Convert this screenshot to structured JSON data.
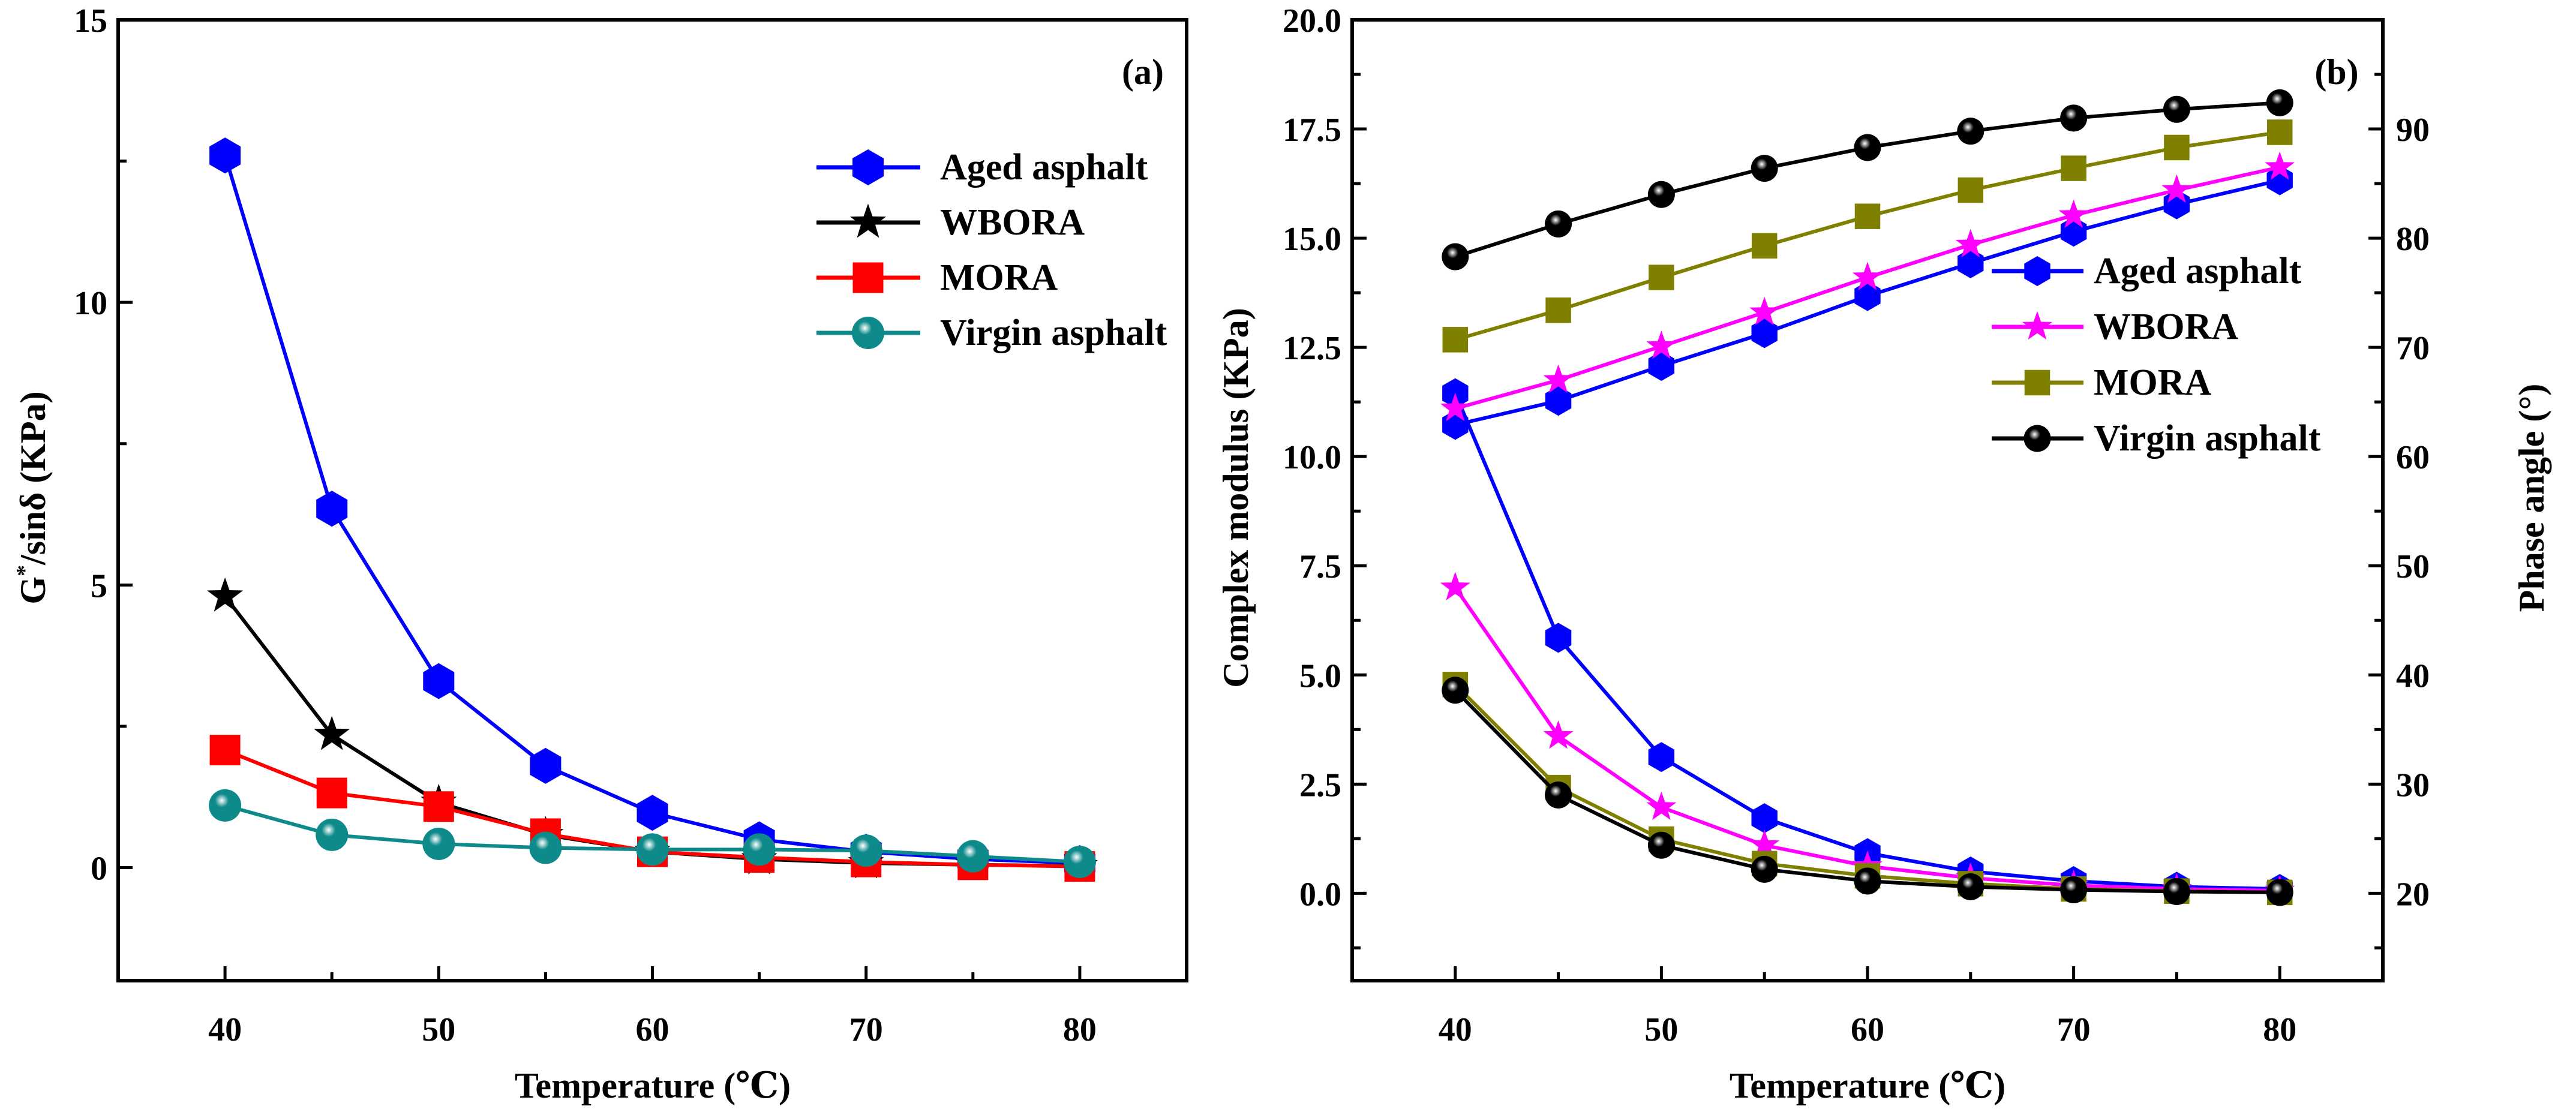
{
  "chart_data": [
    {
      "type": "line",
      "panel_label": "(a)",
      "xlabel": "Temperature (℃)",
      "ylabel": "G*/sinδ (KPa)",
      "ylabel_parts": {
        "pre": "G",
        "sup": "*",
        "post": "/sinδ (KPa)"
      },
      "xlim": [
        35,
        85
      ],
      "ylim": [
        -2,
        15
      ],
      "xticks": [
        40,
        50,
        60,
        70,
        80
      ],
      "yticks": [
        0,
        5,
        10,
        15
      ],
      "legend_position": "top-right",
      "x": [
        40,
        45,
        50,
        55,
        60,
        65,
        70,
        75,
        80
      ],
      "series": [
        {
          "name": "Aged asphalt",
          "color": "#0000ff",
          "marker": "hexagon",
          "values": [
            12.6,
            6.35,
            3.3,
            1.8,
            0.97,
            0.5,
            0.28,
            0.15,
            0.08
          ]
        },
        {
          "name": "WBORA",
          "color": "#000000",
          "marker": "star",
          "values": [
            4.8,
            2.35,
            1.15,
            0.58,
            0.28,
            0.15,
            0.08,
            0.05,
            0.03
          ]
        },
        {
          "name": "MORA",
          "color": "#ff0000",
          "marker": "square",
          "values": [
            2.08,
            1.32,
            1.08,
            0.6,
            0.28,
            0.18,
            0.1,
            0.05,
            0.02
          ]
        },
        {
          "name": "Virgin asphalt",
          "color": "#0f8a8a",
          "marker": "sphere",
          "values": [
            1.1,
            0.58,
            0.42,
            0.35,
            0.32,
            0.32,
            0.3,
            0.2,
            0.1
          ]
        }
      ]
    },
    {
      "type": "line",
      "panel_label": "(b)",
      "xlabel": "Temperature (℃)",
      "ylabel": "Complex modulus (KPa)",
      "y2label": "Phase angle (°)",
      "xlim": [
        35,
        85
      ],
      "ylim": [
        -2,
        20
      ],
      "y2lim": [
        12,
        100
      ],
      "xticks": [
        40,
        50,
        60,
        70,
        80
      ],
      "yticks": [
        "0.0",
        "2.5",
        "5.0",
        "7.5",
        "10.0",
        "12.5",
        "15.0",
        "17.5",
        "20.0"
      ],
      "y2ticks": [
        20,
        30,
        40,
        50,
        60,
        70,
        80,
        90
      ],
      "legend_position": "center-right",
      "x": [
        40,
        45,
        50,
        55,
        60,
        65,
        70,
        75,
        80
      ],
      "series": [
        {
          "name": "Aged asphalt",
          "color": "#0000ff",
          "marker": "hexagon",
          "modulus": [
            11.45,
            5.85,
            3.12,
            1.72,
            0.92,
            0.5,
            0.28,
            0.15,
            0.1
          ],
          "phase": [
            62.9,
            65.1,
            68.3,
            71.3,
            74.7,
            77.7,
            80.6,
            83.1,
            85.3
          ]
        },
        {
          "name": "WBORA",
          "color": "#ff00ff",
          "marker": "star",
          "modulus": [
            7.0,
            3.6,
            1.97,
            1.1,
            0.62,
            0.35,
            0.18,
            0.1,
            0.06
          ],
          "phase": [
            64.4,
            67.0,
            70.1,
            73.2,
            76.4,
            79.4,
            82.1,
            84.4,
            86.5
          ]
        },
        {
          "name": "MORA",
          "color": "#808000",
          "marker": "square",
          "modulus": [
            4.78,
            2.42,
            1.24,
            0.68,
            0.4,
            0.22,
            0.1,
            0.05,
            0.02
          ],
          "phase": [
            70.7,
            73.4,
            76.4,
            79.3,
            82.0,
            84.4,
            86.4,
            88.3,
            89.7
          ]
        },
        {
          "name": "Virgin asphalt",
          "color": "#000000",
          "marker": "sphere",
          "modulus": [
            4.65,
            2.25,
            1.1,
            0.55,
            0.28,
            0.15,
            0.08,
            0.04,
            0.02
          ],
          "phase": [
            78.3,
            81.3,
            84.0,
            86.4,
            88.3,
            89.8,
            91.0,
            91.8,
            92.4
          ]
        }
      ]
    }
  ]
}
